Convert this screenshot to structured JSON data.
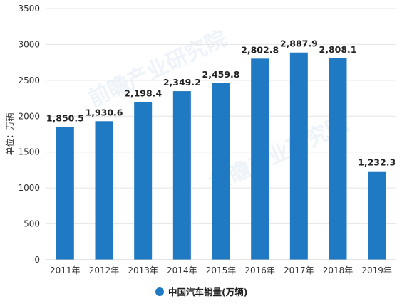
{
  "chart_data": {
    "type": "bar",
    "ylabel": "单位：万辆",
    "categories": [
      "2011年",
      "2012年",
      "2013年",
      "2014年",
      "2015年",
      "2016年",
      "2017年",
      "2018年",
      "2019年"
    ],
    "series": [
      {
        "name": "中国汽车销量(万辆)",
        "values": [
          1850.5,
          1930.6,
          2198.4,
          2349.2,
          2459.8,
          2802.8,
          2887.9,
          2808.1,
          1232.3
        ],
        "labels": [
          "1,850.5",
          "1,930.6",
          "2,198.4",
          "2,349.2",
          "2,459.8",
          "2,802.8",
          "2,887.9",
          "2,808.1",
          "1,232.3"
        ]
      }
    ],
    "ylim": [
      0,
      3500
    ],
    "yticks": [
      0,
      500,
      1000,
      1500,
      2000,
      2500,
      3000,
      3500
    ],
    "grid": true,
    "legend_position": "bottom-center",
    "colors": {
      "bar": "#1f7ac3",
      "grid": "#e4e4e4"
    }
  },
  "watermark": {
    "text": "前瞻产业研究院"
  }
}
